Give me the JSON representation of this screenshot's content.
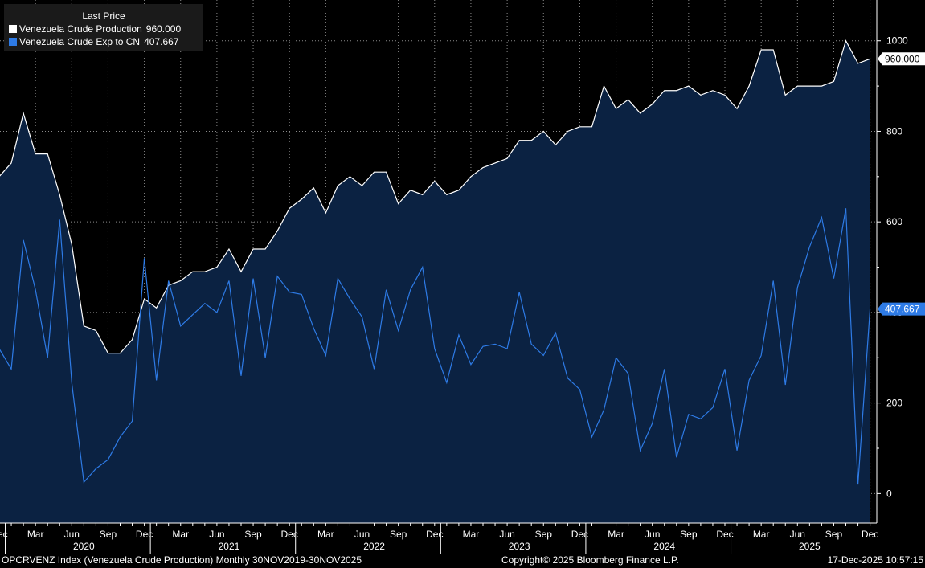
{
  "chart_data": {
    "type": "area",
    "title": "Last Price",
    "ylim": [
      -65,
      1090
    ],
    "yticks": [
      0,
      200,
      400,
      600,
      800,
      1000
    ],
    "months_per_step": 1,
    "series": [
      {
        "name": "Venezuela Crude Production",
        "last_value": 960.0,
        "last_value_label": "960.000",
        "color": "#ffffff",
        "fill": "#0b2242",
        "values": [
          700,
          730,
          840,
          750,
          750,
          660,
          550,
          370,
          360,
          310,
          310,
          340,
          430,
          410,
          460,
          470,
          490,
          490,
          500,
          540,
          490,
          540,
          540,
          580,
          630,
          650,
          675,
          620,
          680,
          700,
          680,
          710,
          710,
          640,
          670,
          660,
          690,
          660,
          670,
          700,
          720,
          730,
          740,
          780,
          780,
          800,
          770,
          800,
          810,
          810,
          900,
          850,
          870,
          840,
          860,
          890,
          890,
          900,
          880,
          890,
          880,
          850,
          900,
          980,
          980,
          880,
          900,
          900,
          900,
          910,
          1000,
          950,
          960
        ]
      },
      {
        "name": "Venezuela Crude Exp to CN",
        "last_value": 407.667,
        "last_value_label": "407.667",
        "color": "#2e7be6",
        "values": [
          320,
          275,
          560,
          450,
          300,
          605,
          245,
          25,
          55,
          75,
          125,
          160,
          520,
          250,
          470,
          370,
          395,
          420,
          400,
          470,
          260,
          475,
          300,
          480,
          445,
          440,
          365,
          305,
          475,
          430,
          390,
          275,
          450,
          360,
          450,
          500,
          320,
          245,
          350,
          285,
          325,
          330,
          320,
          445,
          330,
          305,
          355,
          255,
          230,
          125,
          185,
          300,
          265,
          95,
          155,
          275,
          80,
          175,
          165,
          190,
          275,
          95,
          250,
          305,
          470,
          240,
          455,
          545,
          610,
          475,
          630,
          20,
          407.667
        ]
      }
    ],
    "x_month_labels": [
      "Dec",
      "Mar",
      "Jun",
      "Sep",
      "Dec",
      "Mar",
      "Jun",
      "Sep",
      "Dec",
      "Mar",
      "Jun",
      "Sep",
      "Dec",
      "Mar",
      "Jun",
      "Sep",
      "Dec",
      "Mar",
      "Jun",
      "Sep",
      "Dec",
      "Mar",
      "Jun",
      "Sep",
      "Dec"
    ],
    "x_year_labels": [
      "2020",
      "2021",
      "2022",
      "2023",
      "2024",
      "2025"
    ],
    "grid": true
  },
  "footer": {
    "left": "OPCRVENZ Index (Venezuela Crude Production) Monthly 30NOV2019-30NOV2025",
    "center": "Copyright© 2025 Bloomberg Finance L.P.",
    "right": "17-Dec-2025 10:57:15"
  }
}
